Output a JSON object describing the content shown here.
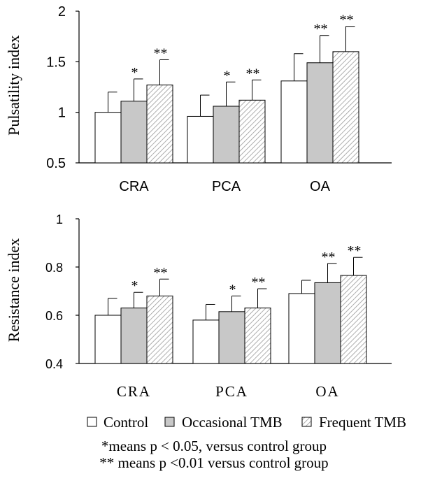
{
  "chart_data": [
    {
      "type": "bar",
      "ylabel": "Pulsatility index",
      "categories": [
        "CRA",
        "PCA",
        "OA"
      ],
      "ylim": [
        0.5,
        2
      ],
      "yticks": [
        "0.5",
        "1",
        "1.5",
        "2"
      ],
      "series": [
        {
          "name": "Control",
          "values": [
            1.0,
            0.96,
            1.31
          ],
          "errors": [
            0.2,
            0.21,
            0.27
          ]
        },
        {
          "name": "Occasional TMB",
          "values": [
            1.11,
            1.06,
            1.49
          ],
          "errors": [
            0.22,
            0.24,
            0.27
          ]
        },
        {
          "name": "Frequent TMB",
          "values": [
            1.27,
            1.12,
            1.6
          ],
          "errors": [
            0.25,
            0.2,
            0.25
          ]
        }
      ],
      "significance": [
        [
          "",
          "*",
          "**"
        ],
        [
          "",
          "*",
          "**"
        ],
        [
          "",
          "**",
          "**"
        ]
      ]
    },
    {
      "type": "bar",
      "ylabel": "Resistance index",
      "categories": [
        "CRA",
        "PCA",
        "OA"
      ],
      "ylim": [
        0.4,
        1
      ],
      "yticks": [
        "0.4",
        "0.6",
        "0.8",
        "1"
      ],
      "series": [
        {
          "name": "Control",
          "values": [
            0.6,
            0.58,
            0.69
          ],
          "errors": [
            0.07,
            0.065,
            0.055
          ]
        },
        {
          "name": "Occasional TMB",
          "values": [
            0.63,
            0.615,
            0.735
          ],
          "errors": [
            0.065,
            0.065,
            0.08
          ]
        },
        {
          "name": "Frequent TMB",
          "values": [
            0.68,
            0.63,
            0.765
          ],
          "errors": [
            0.07,
            0.08,
            0.075
          ]
        }
      ],
      "significance": [
        [
          "",
          "*",
          "**"
        ],
        [
          "",
          "*",
          "**"
        ],
        [
          "",
          "**",
          "**"
        ]
      ]
    }
  ],
  "legend": [
    {
      "label": "Control",
      "fill": "#ffffff"
    },
    {
      "label": "Occasional TMB",
      "fill": "#c8c8c8"
    },
    {
      "label": "Frequent TMB",
      "fill": "hatch"
    }
  ],
  "footnotes": [
    "*means p < 0.05, versus control group",
    "** means p <0.01 versus control group"
  ]
}
